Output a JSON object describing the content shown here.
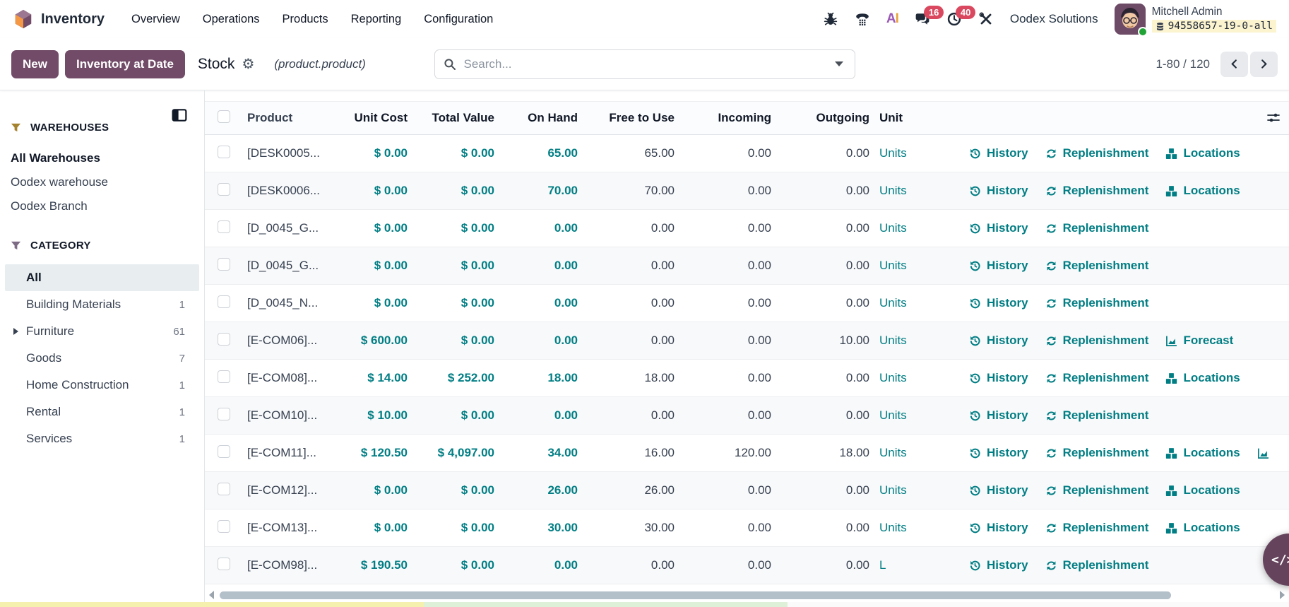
{
  "app": {
    "name": "Inventory",
    "menus": [
      "Overview",
      "Operations",
      "Products",
      "Reporting",
      "Configuration"
    ]
  },
  "topbar": {
    "badges": {
      "messages": "16",
      "activities": "40"
    },
    "company": "Oodex Solutions",
    "user": {
      "name": "Mitchell Admin",
      "database": "94558657-19-0-all"
    }
  },
  "control_panel": {
    "new_label": "New",
    "inventory_at_date_label": "Inventory at Date",
    "title": "Stock",
    "model": "(product.product)",
    "search": {
      "placeholder": "Search..."
    },
    "pager": {
      "text": "1-80 / 120"
    }
  },
  "sidebar": {
    "sections": [
      {
        "title": "WAREHOUSES",
        "items": [
          {
            "label": "All Warehouses",
            "active": true
          },
          {
            "label": "Oodex warehouse"
          },
          {
            "label": "Oodex Branch"
          }
        ]
      },
      {
        "title": "CATEGORY",
        "items": [
          {
            "label": "All",
            "selected": true
          },
          {
            "label": "Building Materials",
            "count": "1"
          },
          {
            "label": "Furniture",
            "count": "61",
            "expandable": true
          },
          {
            "label": "Goods",
            "count": "7"
          },
          {
            "label": "Home Construction",
            "count": "1"
          },
          {
            "label": "Rental",
            "count": "1"
          },
          {
            "label": "Services",
            "count": "1"
          }
        ]
      }
    ]
  },
  "table": {
    "columns": [
      "Product",
      "Unit Cost",
      "Total Value",
      "On Hand",
      "Free to Use",
      "Incoming",
      "Outgoing",
      "Unit"
    ],
    "action_labels": {
      "history": "History",
      "replenishment": "Replenishment",
      "locations": "Locations",
      "forecast": "Forecast"
    },
    "rows": [
      {
        "product": "[DESK0005...",
        "unit_cost": "$ 0.00",
        "total_value": "$ 0.00",
        "on_hand": "65.00",
        "free_to_use": "65.00",
        "incoming": "0.00",
        "outgoing": "0.00",
        "unit": "Units",
        "locations": true
      },
      {
        "product": "[DESK0006...",
        "unit_cost": "$ 0.00",
        "total_value": "$ 0.00",
        "on_hand": "70.00",
        "free_to_use": "70.00",
        "incoming": "0.00",
        "outgoing": "0.00",
        "unit": "Units",
        "locations": true
      },
      {
        "product": "[D_0045_G...",
        "unit_cost": "$ 0.00",
        "total_value": "$ 0.00",
        "on_hand": "0.00",
        "free_to_use": "0.00",
        "incoming": "0.00",
        "outgoing": "0.00",
        "unit": "Units"
      },
      {
        "product": "[D_0045_G...",
        "unit_cost": "$ 0.00",
        "total_value": "$ 0.00",
        "on_hand": "0.00",
        "free_to_use": "0.00",
        "incoming": "0.00",
        "outgoing": "0.00",
        "unit": "Units"
      },
      {
        "product": "[D_0045_N...",
        "unit_cost": "$ 0.00",
        "total_value": "$ 0.00",
        "on_hand": "0.00",
        "free_to_use": "0.00",
        "incoming": "0.00",
        "outgoing": "0.00",
        "unit": "Units"
      },
      {
        "product": "[E-COM06]...",
        "unit_cost": "$ 600.00",
        "total_value": "$ 0.00",
        "on_hand": "0.00",
        "free_to_use": "0.00",
        "incoming": "0.00",
        "outgoing": "10.00",
        "unit": "Units",
        "forecast": true
      },
      {
        "product": "[E-COM08]...",
        "unit_cost": "$ 14.00",
        "total_value": "$ 252.00",
        "on_hand": "18.00",
        "free_to_use": "18.00",
        "incoming": "0.00",
        "outgoing": "0.00",
        "unit": "Units",
        "locations": true
      },
      {
        "product": "[E-COM10]...",
        "unit_cost": "$ 10.00",
        "total_value": "$ 0.00",
        "on_hand": "0.00",
        "free_to_use": "0.00",
        "incoming": "0.00",
        "outgoing": "0.00",
        "unit": "Units"
      },
      {
        "product": "[E-COM11]...",
        "unit_cost": "$ 120.50",
        "total_value": "$ 4,097.00",
        "on_hand": "34.00",
        "free_to_use": "16.00",
        "incoming": "120.00",
        "outgoing": "18.00",
        "unit": "Units",
        "locations": true,
        "forecast_icon": true
      },
      {
        "product": "[E-COM12]...",
        "unit_cost": "$ 0.00",
        "total_value": "$ 0.00",
        "on_hand": "26.00",
        "free_to_use": "26.00",
        "incoming": "0.00",
        "outgoing": "0.00",
        "unit": "Units",
        "locations": true
      },
      {
        "product": "[E-COM13]...",
        "unit_cost": "$ 0.00",
        "total_value": "$ 0.00",
        "on_hand": "30.00",
        "free_to_use": "30.00",
        "incoming": "0.00",
        "outgoing": "0.00",
        "unit": "Units",
        "locations": true
      },
      {
        "product": "[E-COM98]...",
        "unit_cost": "$ 190.50",
        "total_value": "$ 0.00",
        "on_hand": "0.00",
        "free_to_use": "0.00",
        "incoming": "0.00",
        "outgoing": "0.00",
        "unit": "L"
      }
    ]
  },
  "fab": {
    "glyph": "</>"
  },
  "icons": {
    "search": "magnifier",
    "gear": "⚙",
    "funnel": "filter-funnel",
    "bug": "bug",
    "voip": "phone-keypad",
    "ai": "AI",
    "messages": "chat-bubbles",
    "activities": "clock",
    "tools": "crossed-tools",
    "history": "circular-arrow-clock",
    "replenishment": "refresh-arrows",
    "locations": "stacked-boxes",
    "forecast": "area-chart",
    "database": "db-cylinder",
    "panel_toggle": "split-square",
    "column_options": "sliders"
  },
  "colors": {
    "accent_teal": "#017e84",
    "brand_purple": "#714B67",
    "badge_red": "#d9485e",
    "db_tag_bg": "#fcf3cf",
    "selected_bg": "#e8eef0",
    "row_stripe": "#f8f9fa"
  }
}
